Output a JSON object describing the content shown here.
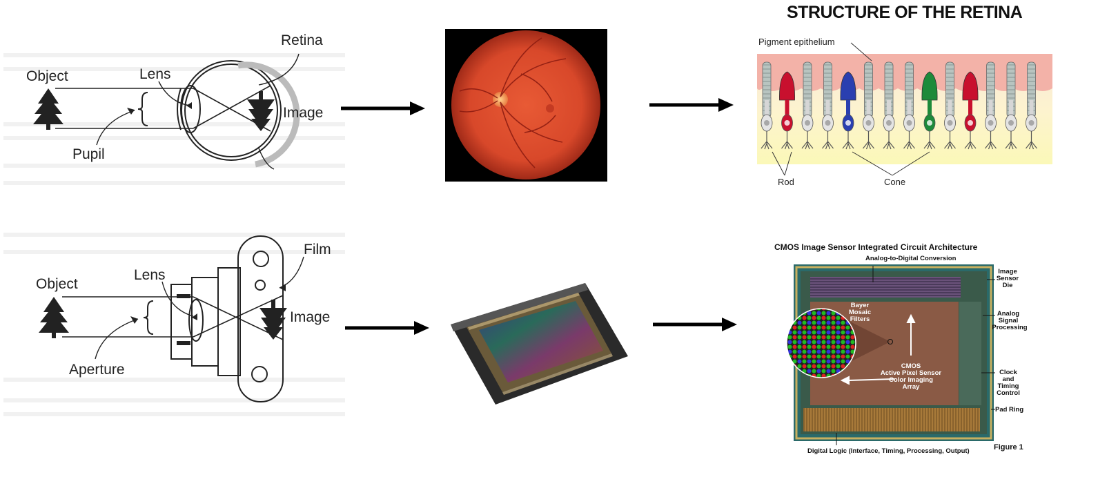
{
  "eye_diagram": {
    "object": "Object",
    "lens": "Lens",
    "retina": "Retina",
    "image": "Image",
    "pupil": "Pupil"
  },
  "camera_diagram": {
    "object": "Object",
    "lens": "Lens",
    "film": "Film",
    "image": "Image",
    "aperture": "Aperture"
  },
  "retina_structure": {
    "title": "STRUCTURE OF THE RETINA",
    "pigment": "Pigment epithelium",
    "rod": "Rod",
    "cone": "Cone"
  },
  "cmos_architecture": {
    "title": "CMOS Image Sensor Integrated Circuit Architecture",
    "adc": "Analog-to-Digital Conversion",
    "die_1": "Image",
    "die_2": "Sensor",
    "die_3": "Die",
    "asp_1": "Analog",
    "asp_2": "Signal",
    "asp_3": "Processing",
    "clock_1": "Clock",
    "clock_2": "and",
    "clock_3": "Timing",
    "clock_4": "Control",
    "pad_ring": "Pad Ring",
    "bayer_1": "Bayer",
    "bayer_2": "Mosaic",
    "bayer_3": "Filters",
    "array_1": "CMOS",
    "array_2": "Active Pixel Sensor",
    "array_3": "Color Imaging",
    "array_4": "Array",
    "digital": "Digital Logic (Interface, Timing, Processing, Output)",
    "figure": "Figure 1"
  },
  "colors": {
    "arrow": "#000000",
    "fundus": "#d8482a",
    "rod": "#c8c8c8",
    "cone_red": "#c8102e",
    "cone_blue": "#2a3fb0",
    "cone_green": "#1d8a3a",
    "cmos_core": "#8a5a45",
    "cmos_digital": "#a87a3a"
  }
}
